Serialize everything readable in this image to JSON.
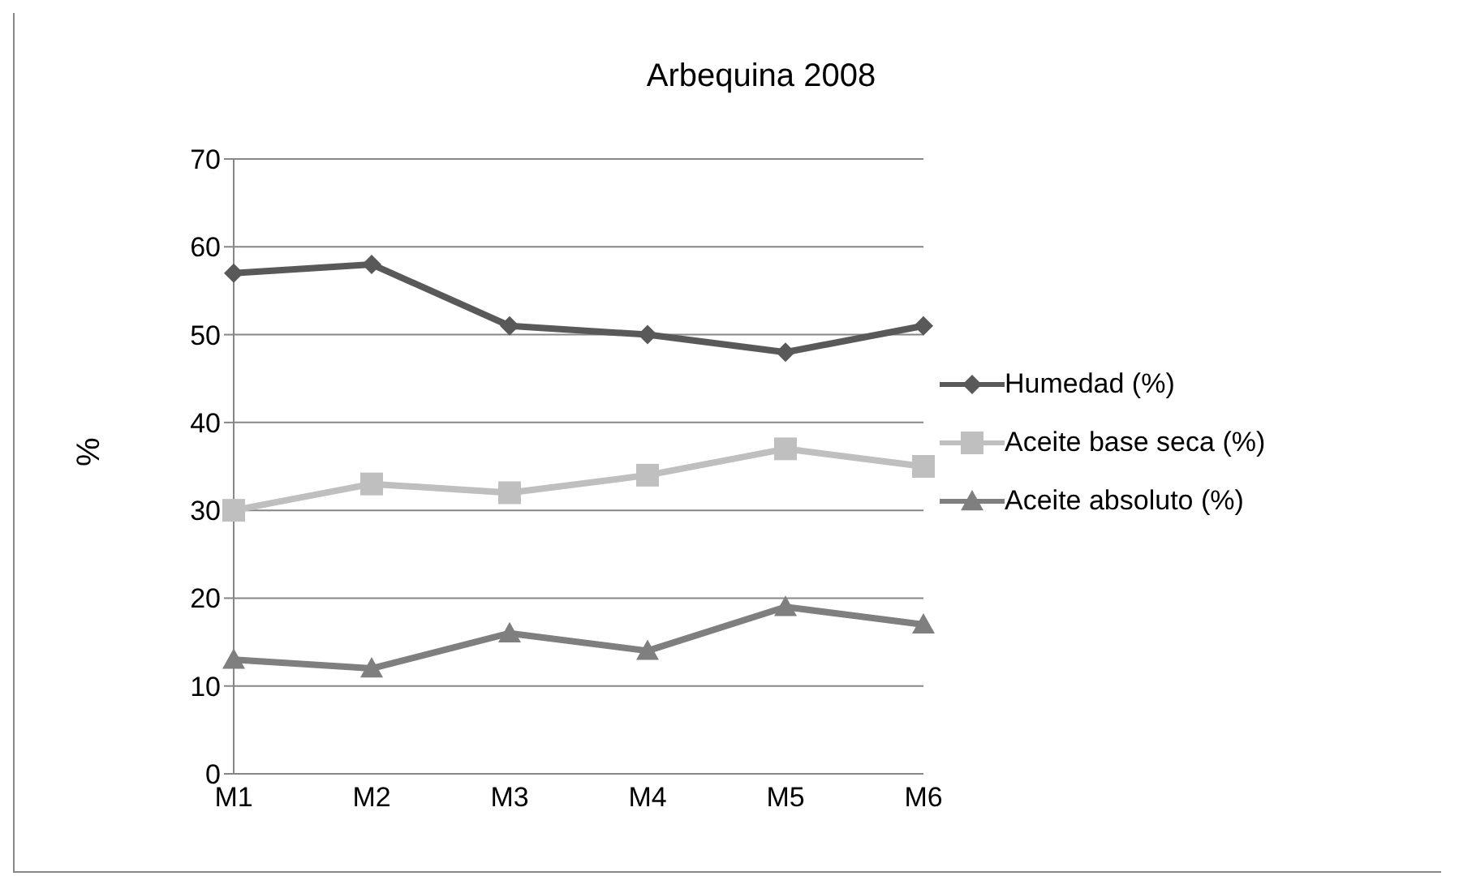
{
  "chart_data": {
    "type": "line",
    "title": "Arbequina 2008",
    "ylabel": "%",
    "categories": [
      "M1",
      "M2",
      "M3",
      "M4",
      "M5",
      "M6"
    ],
    "series": [
      {
        "name": "Humedad (%)",
        "color": "#595959",
        "marker": "diamond",
        "values": [
          57,
          58,
          51,
          50,
          48,
          51
        ]
      },
      {
        "name": "Aceite base seca (%)",
        "color": "#bfbfbf",
        "marker": "square",
        "values": [
          30,
          33,
          32,
          34,
          37,
          35
        ]
      },
      {
        "name": "Aceite absoluto (%)",
        "color": "#7f7f7f",
        "marker": "triangle",
        "values": [
          13,
          12,
          16,
          14,
          19,
          17
        ]
      }
    ],
    "ylim": [
      0,
      70
    ],
    "yticks": [
      0,
      10,
      20,
      30,
      40,
      50,
      60,
      70
    ],
    "grid": "y",
    "legend": "right"
  }
}
